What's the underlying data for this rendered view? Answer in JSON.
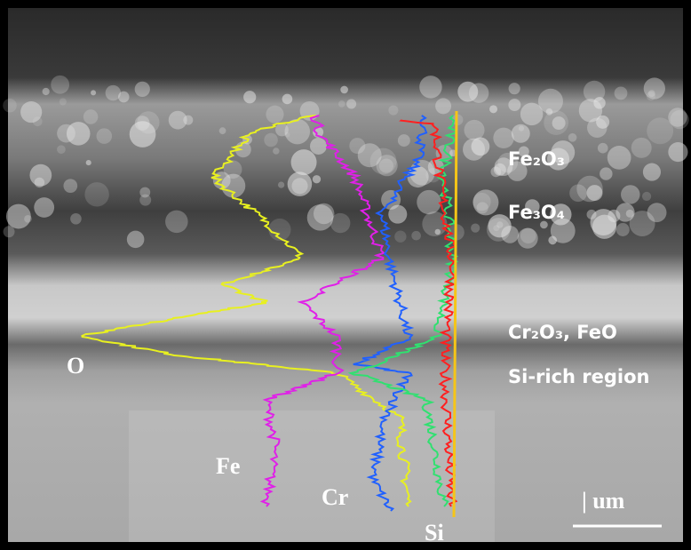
{
  "labels": {
    "fe2o3": "Fe₂O₃",
    "fe3o4": "Fe₃O₄",
    "cr2o3_feo": "Cr₂O₃, FeO",
    "si_rich": "Si-rich region",
    "o": "O",
    "fe": "Fe",
    "cr": "Cr",
    "si": "Si",
    "scale": "| um"
  }
}
